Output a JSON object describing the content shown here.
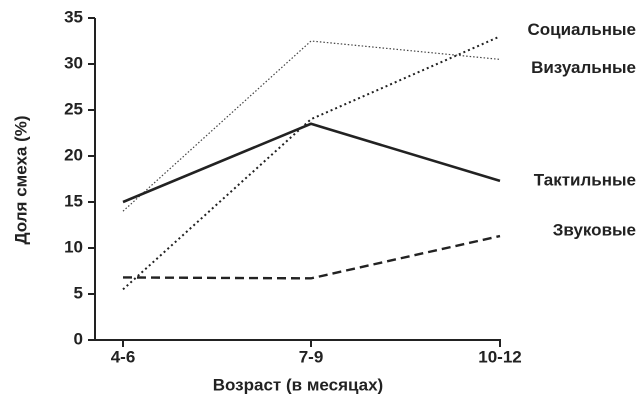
{
  "chart_data": {
    "type": "line",
    "x_label": "Возраст (в месяцах)",
    "y_label": "Доля смеха (%)",
    "categories": [
      "4-6",
      "7-9",
      "10-12"
    ],
    "series": [
      {
        "name": "Социальные",
        "color": "#222222",
        "values": [
          5.5,
          24,
          33
        ]
      },
      {
        "name": "Визуальные",
        "color": "#444444",
        "values": [
          14,
          32.5,
          30.5
        ]
      },
      {
        "name": "Тактильные",
        "color": "#222222",
        "values": [
          15,
          23.5,
          17.3
        ]
      },
      {
        "name": "Звуковые",
        "color": "#222222",
        "values": [
          6.8,
          6.7,
          11.3
        ]
      }
    ],
    "ylim": [
      0,
      35
    ],
    "yticks": [
      0,
      5,
      10,
      15,
      20,
      25,
      30,
      35
    ],
    "grid": false
  }
}
